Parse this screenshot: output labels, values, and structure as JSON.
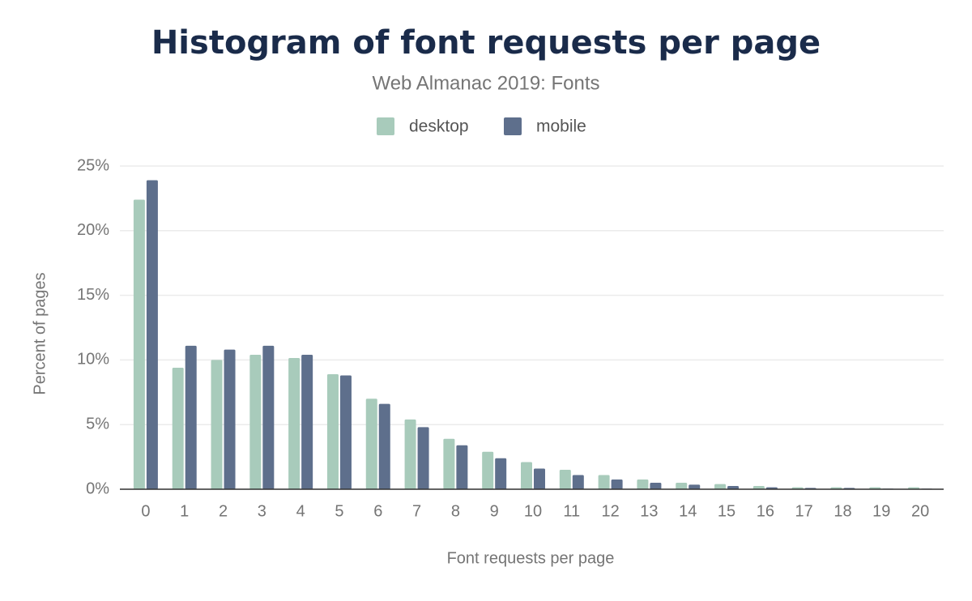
{
  "chart_data": {
    "type": "bar",
    "title": "Histogram of font requests per page",
    "subtitle": "Web Almanac 2019: Fonts",
    "x_label": "Font requests per page",
    "y_label": "Percent of pages",
    "categories": [
      "0",
      "1",
      "2",
      "3",
      "4",
      "5",
      "6",
      "7",
      "8",
      "9",
      "10",
      "11",
      "12",
      "13",
      "14",
      "15",
      "16",
      "17",
      "18",
      "19",
      "20"
    ],
    "series": [
      {
        "name": "desktop",
        "color": "#a8cbbb",
        "values": [
          22.4,
          9.4,
          10.0,
          10.4,
          10.15,
          8.9,
          7.0,
          5.4,
          3.9,
          2.9,
          2.1,
          1.5,
          1.1,
          0.75,
          0.5,
          0.4,
          0.25,
          0.15,
          0.15,
          0.15,
          0.15
        ]
      },
      {
        "name": "mobile",
        "color": "#5e6f8c",
        "values": [
          23.9,
          11.1,
          10.8,
          11.1,
          10.4,
          8.8,
          6.6,
          4.8,
          3.4,
          2.4,
          1.6,
          1.1,
          0.75,
          0.5,
          0.35,
          0.25,
          0.15,
          0.1,
          0.1,
          0.05,
          0.05
        ]
      }
    ],
    "ylim": [
      0,
      25
    ],
    "yticks": [
      {
        "value": 0,
        "label": "0%"
      },
      {
        "value": 5,
        "label": "5%"
      },
      {
        "value": 10,
        "label": "10%"
      },
      {
        "value": 15,
        "label": "15%"
      },
      {
        "value": 20,
        "label": "20%"
      },
      {
        "value": 25,
        "label": "25%"
      }
    ],
    "grid": true,
    "legend": "top"
  }
}
